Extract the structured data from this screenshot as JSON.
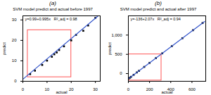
{
  "chart_data": [
    {
      "type": "scatter",
      "panel": "(a)",
      "title": "SVM model predict and actual before 1997",
      "annotation": "y=0.99+0.995x   R²_adj = 0.98",
      "x_label": "actual",
      "y_label": "predict",
      "series": [
        {
          "type": "scatter",
          "marker": "square",
          "color": "#000000",
          "x": [
            3,
            5,
            8,
            10,
            12,
            13,
            14,
            15,
            17,
            20,
            22,
            25,
            27,
            30
          ],
          "values": [
            3.5,
            5.2,
            8.0,
            10.1,
            12.0,
            13.2,
            14.1,
            15.3,
            17.1,
            20.0,
            22.7,
            24.7,
            27.3,
            31.0
          ]
        },
        {
          "type": "line",
          "line_style": "solid",
          "color": "#3355cc",
          "x": [
            0,
            31
          ],
          "values": [
            0.99,
            31.8
          ]
        }
      ],
      "rectangle": {
        "x": 2,
        "y": 2,
        "width": 18,
        "height": 23,
        "color": "#ff5555"
      },
      "xlim": [
        0,
        32
      ],
      "ylim": [
        0,
        32
      ],
      "xticks": [
        0,
        10,
        20,
        30
      ],
      "yticks": [
        0,
        10,
        20,
        30
      ],
      "grid": false
    },
    {
      "type": "scatter",
      "panel": "(b)",
      "title": "SVM model predict and actual after 1997",
      "annotation": "y=-136+2.07x   R²_adj = 0.94",
      "x_label": "actual",
      "y_label": "predict",
      "series": [
        {
          "type": "scatter",
          "marker": "square",
          "color": "#000000",
          "x": [
            5,
            15,
            25,
            50,
            80,
            100,
            150,
            200,
            260,
            320,
            410,
            510,
            610,
            700
          ],
          "values": [
            -126,
            -105,
            -85,
            -32,
            30,
            71,
            174,
            278,
            402,
            526,
            712,
            919,
            1127,
            1313
          ]
        },
        {
          "type": "line",
          "line_style": "solid",
          "color": "#3355cc",
          "x": [
            0,
            720
          ],
          "values": [
            -136,
            1354
          ]
        }
      ],
      "rectangle": {
        "x": 2,
        "y": -180,
        "width": 310,
        "height": 680,
        "color": "#ff5555"
      },
      "xlim": [
        0,
        730
      ],
      "ylim": [
        -200,
        1500
      ],
      "xticks": [
        0,
        200,
        400,
        600
      ],
      "yticks": [
        0,
        500,
        1000
      ],
      "grid": false
    }
  ]
}
